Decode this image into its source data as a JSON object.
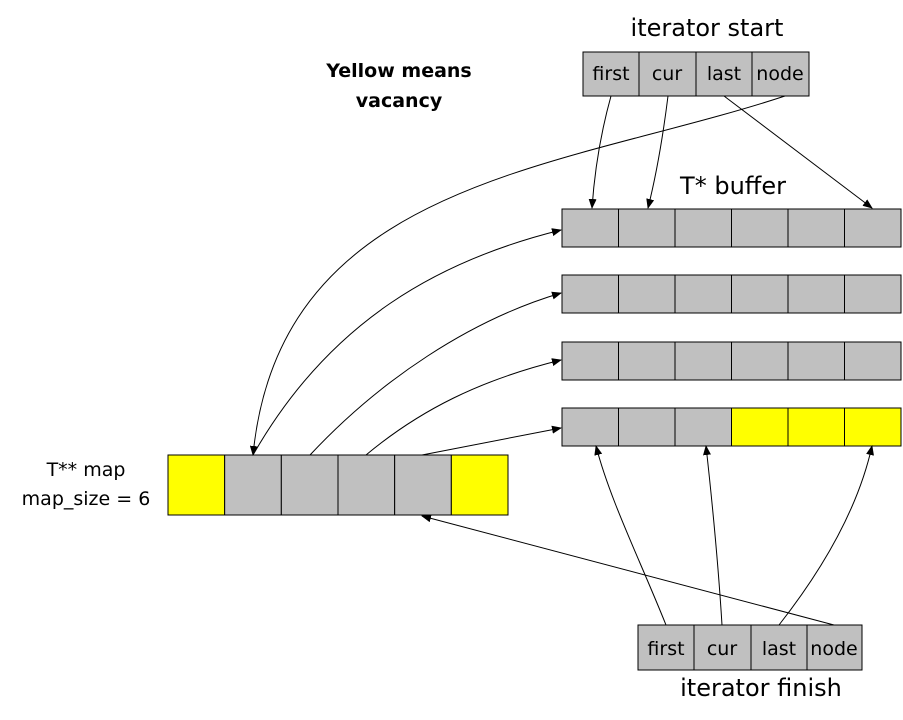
{
  "labels": {
    "note_line1": "Yellow means",
    "note_line2": "vacancy",
    "iterator_start": "iterator start",
    "iterator_finish": "iterator finish",
    "buffer_title": "T* buffer",
    "map_line1": "T** map",
    "map_line2": "map_size = 6"
  },
  "iterator_fields": [
    "first",
    "cur",
    "last",
    "node"
  ],
  "map_cells": [
    "vacant",
    "used",
    "used",
    "used",
    "used",
    "vacant"
  ],
  "buffers": [
    [
      "used",
      "used",
      "used",
      "used",
      "used",
      "used"
    ],
    [
      "used",
      "used",
      "used",
      "used",
      "used",
      "used"
    ],
    [
      "used",
      "used",
      "used",
      "used",
      "used",
      "used"
    ],
    [
      "used",
      "used",
      "used",
      "vacant",
      "vacant",
      "vacant"
    ]
  ],
  "colors": {
    "used": "#c0c0c0",
    "vacant": "#ffff00"
  }
}
